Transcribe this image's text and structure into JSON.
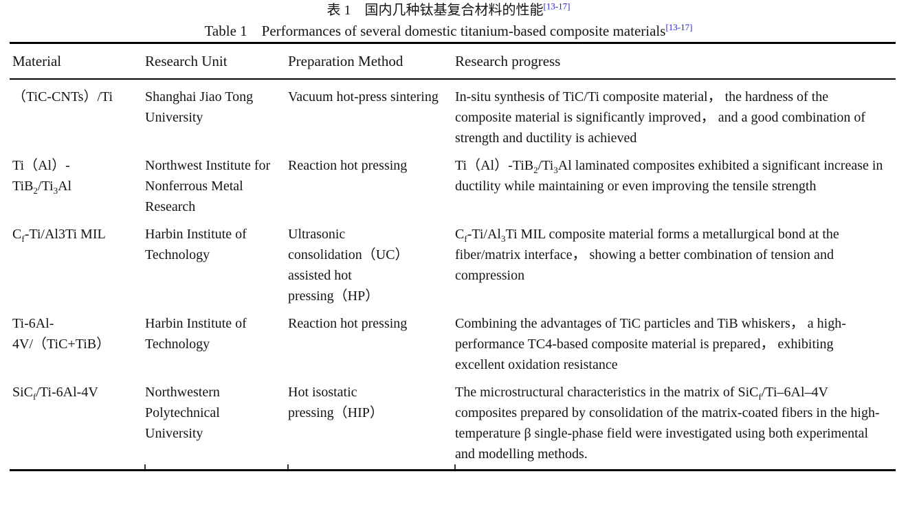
{
  "page": {
    "title_zh": "表 1　国内几种钛基复合材料的性能",
    "title_zh_ref": "[13-17]",
    "title_en": "Table 1　Performances of several domestic titanium-based composite materials",
    "title_en_ref": "[13-17]",
    "ref_link_color": "#2323cc",
    "text_color": "#141414",
    "rule_color": "#000000"
  },
  "table": {
    "headers": [
      "Material",
      "Research Unit",
      "Preparation Method",
      "Research progress"
    ],
    "rows": [
      {
        "material": "（TiC-CNTs）/Ti",
        "unit": "Shanghai Jiao Tong University",
        "method": "Vacuum hot-press sintering",
        "progress": "In-situ synthesis of TiC/Ti composite material， the hardness of the composite material is significantly improved， and a good combination of strength and ductility is achieved"
      },
      {
        "material": "Ti（Al）-<br>TiB<sub>2</sub>/Ti<sub>3</sub>Al",
        "unit": "Northwest Institute for Nonferrous Metal Research",
        "method": "Reaction hot pressing",
        "progress": "Ti（Al）-TiB<sub>2</sub>/Ti<sub>3</sub>Al laminated composites exhibited a significant increase in ductility while maintaining or even improving the tensile strength"
      },
      {
        "material": "C<sub>f</sub>-Ti/Al3Ti MIL",
        "unit": "Harbin Institute of Technology",
        "method": "Ultrasonic<br>consolidation（UC）<br>assisted hot<br>pressing（HP）",
        "progress": "C<sub>f</sub>-Ti/Al<sub>3</sub>Ti MIL composite material forms a metallurgical bond at the fiber/matrix interface， showing a better combination of tension and compression"
      },
      {
        "material": "Ti-6Al-<br>4V/（TiC+TiB）",
        "unit": "Harbin Institute of Technology",
        "method": "Reaction hot pressing",
        "progress": "Combining the advantages of TiC particles and TiB whiskers， a high-performance TC4-based composite material is prepared， exhibiting excellent oxidation resistance"
      },
      {
        "material": "SiC<sub>f</sub>/Ti-6Al-4V",
        "unit": "Northwestern Polytechnical University",
        "method": "Hot isostatic<br>pressing（HIP）",
        "progress": "The microstructural characteristics in the matrix of SiC<sub>f</sub>/Ti–6Al–4V composites prepared by consolidation of the matrix-coated fibers in the high-temperature β single-phase field were investigated using both experimental and modelling methods."
      }
    ]
  }
}
